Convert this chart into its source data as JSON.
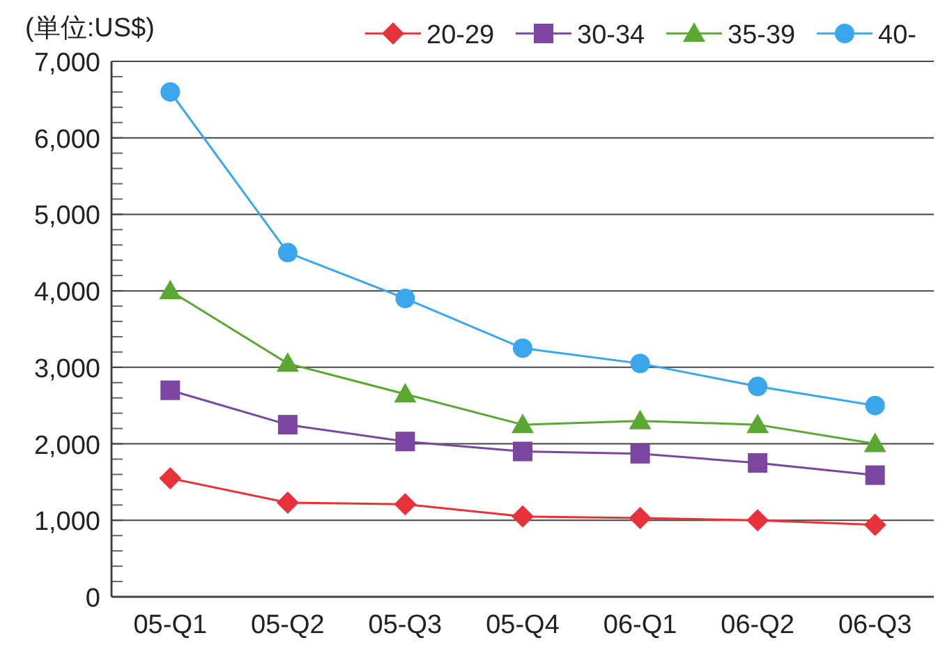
{
  "chart_data": {
    "type": "line",
    "ylabel": "(単位:US$)",
    "categories": [
      "05-Q1",
      "05-Q2",
      "05-Q3",
      "05-Q4",
      "06-Q1",
      "06-Q2",
      "06-Q3"
    ],
    "series": [
      {
        "name": "20-29",
        "color": "#e8323a",
        "marker": "diamond",
        "values": [
          1550,
          1230,
          1210,
          1050,
          1030,
          1000,
          940
        ]
      },
      {
        "name": "30-34",
        "color": "#7b45a0",
        "marker": "square",
        "values": [
          2700,
          2250,
          2030,
          1900,
          1870,
          1750,
          1590
        ]
      },
      {
        "name": "35-39",
        "color": "#5aa832",
        "marker": "triangle",
        "values": [
          4000,
          3050,
          2650,
          2250,
          2300,
          2250,
          2000
        ]
      },
      {
        "name": "40-",
        "color": "#3aa6ec",
        "marker": "circle",
        "values": [
          6600,
          4500,
          3900,
          3250,
          3050,
          2750,
          2500
        ]
      }
    ],
    "ylim": [
      0,
      7000
    ],
    "yticks": [
      {
        "value": 0,
        "label": "0"
      },
      {
        "value": 200,
        "label": null
      },
      {
        "value": 400,
        "label": null
      },
      {
        "value": 600,
        "label": null
      },
      {
        "value": 800,
        "label": null
      },
      {
        "value": 1000,
        "label": "1,000"
      },
      {
        "value": 1200,
        "label": null
      },
      {
        "value": 1400,
        "label": null
      },
      {
        "value": 1600,
        "label": null
      },
      {
        "value": 1800,
        "label": null
      },
      {
        "value": 2000,
        "label": "2,000"
      },
      {
        "value": 2200,
        "label": null
      },
      {
        "value": 2400,
        "label": null
      },
      {
        "value": 2600,
        "label": null
      },
      {
        "value": 2800,
        "label": null
      },
      {
        "value": 3000,
        "label": "3,000"
      },
      {
        "value": 3200,
        "label": null
      },
      {
        "value": 3400,
        "label": null
      },
      {
        "value": 3600,
        "label": null
      },
      {
        "value": 3800,
        "label": null
      },
      {
        "value": 4000,
        "label": "4,000"
      },
      {
        "value": 4200,
        "label": null
      },
      {
        "value": 4400,
        "label": null
      },
      {
        "value": 4600,
        "label": null
      },
      {
        "value": 4800,
        "label": null
      },
      {
        "value": 5000,
        "label": "5,000"
      },
      {
        "value": 5200,
        "label": null
      },
      {
        "value": 5400,
        "label": null
      },
      {
        "value": 5600,
        "label": null
      },
      {
        "value": 5800,
        "label": null
      },
      {
        "value": 6000,
        "label": "6,000"
      },
      {
        "value": 6200,
        "label": null
      },
      {
        "value": 6400,
        "label": null
      },
      {
        "value": 6600,
        "label": null
      },
      {
        "value": 6800,
        "label": null
      },
      {
        "value": 7000,
        "label": "7,000"
      }
    ],
    "grid": "y",
    "legend": "top right",
    "line_style": "solid"
  }
}
